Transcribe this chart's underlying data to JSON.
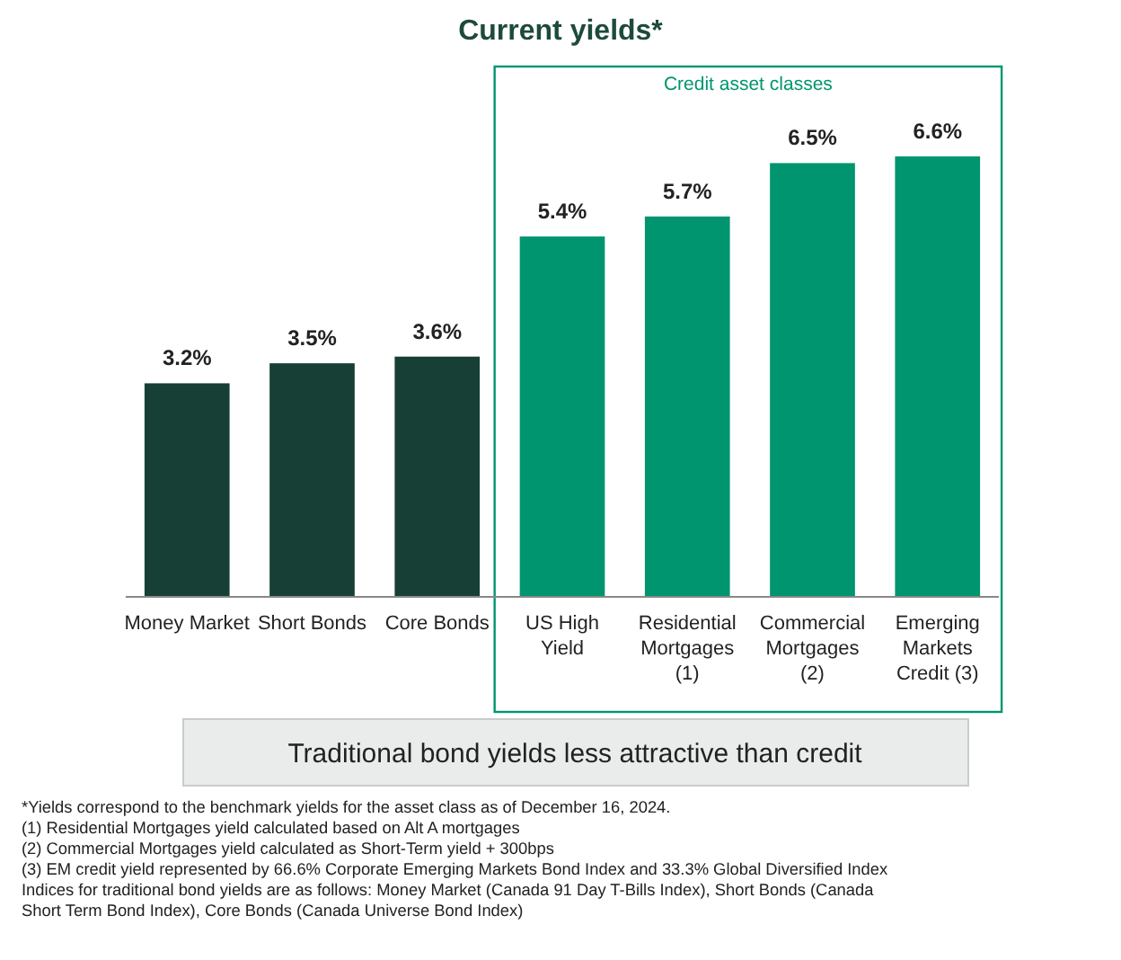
{
  "chart_data": {
    "type": "bar",
    "title": "Current yields*",
    "categories": [
      "Money Market",
      "Short Bonds",
      "Core Bonds",
      "US High Yield",
      "Residential Mortgages (1)",
      "Commercial Mortgages (2)",
      "Emerging Markets Credit (3)"
    ],
    "values": [
      3.2,
      3.5,
      3.6,
      5.4,
      5.7,
      6.5,
      6.6
    ],
    "value_labels": [
      "3.2%",
      "3.5%",
      "3.6%",
      "5.4%",
      "5.7%",
      "6.5%",
      "6.6%"
    ],
    "colors": [
      "#173f35",
      "#173f35",
      "#173f35",
      "#00956e",
      "#00956e",
      "#00956e",
      "#00956e"
    ],
    "annotations": [
      "Credit asset classes",
      "Traditional bond yields less attractive than credit",
      "*Yields correspond to the benchmark yields for the asset class as of December 16, 2024.",
      "(1)    Residential Mortgages yield calculated based on Alt A mortgages",
      "(2)    Commercial Mortgages yield calculated as Short-Term yield + 300bps",
      "(3)    EM credit yield represented by 66.6% Corporate Emerging Markets Bond Index and 33.3% Global Diversified Index",
      "Indices for traditional bond yields are as follows: Money Market (Canada 91 Day T-Bills Index), Short Bonds (Canada Short Term Bond Index), Core Bonds (Canada Universe Bond Index)"
    ]
  }
}
